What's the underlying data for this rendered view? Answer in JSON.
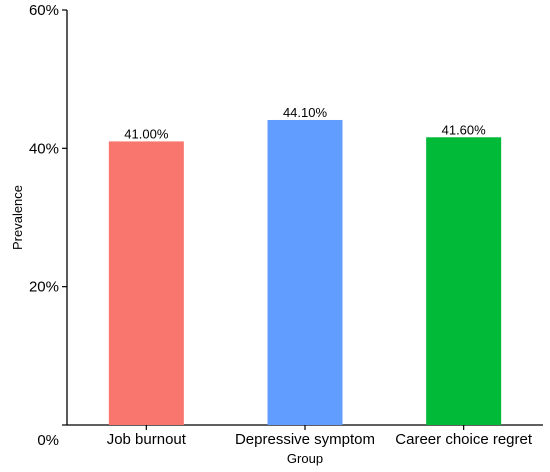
{
  "chart_data": {
    "type": "bar",
    "title": "",
    "xlabel": "Group",
    "ylabel": "Prevalence",
    "categories": [
      "Job burnout",
      "Depressive symptom",
      "Career choice regret"
    ],
    "values": [
      41.0,
      44.1,
      41.6
    ],
    "value_labels": [
      "41.00%",
      "44.10%",
      "41.60%"
    ],
    "colors": [
      "#F8766D",
      "#619CFF",
      "#00BA38"
    ],
    "ylim": [
      0,
      60
    ],
    "yticks": [
      0,
      20,
      40,
      60
    ],
    "ytick_labels": [
      "0%",
      "20%",
      "40%",
      "60%"
    ],
    "grid": false,
    "legend": "none"
  }
}
